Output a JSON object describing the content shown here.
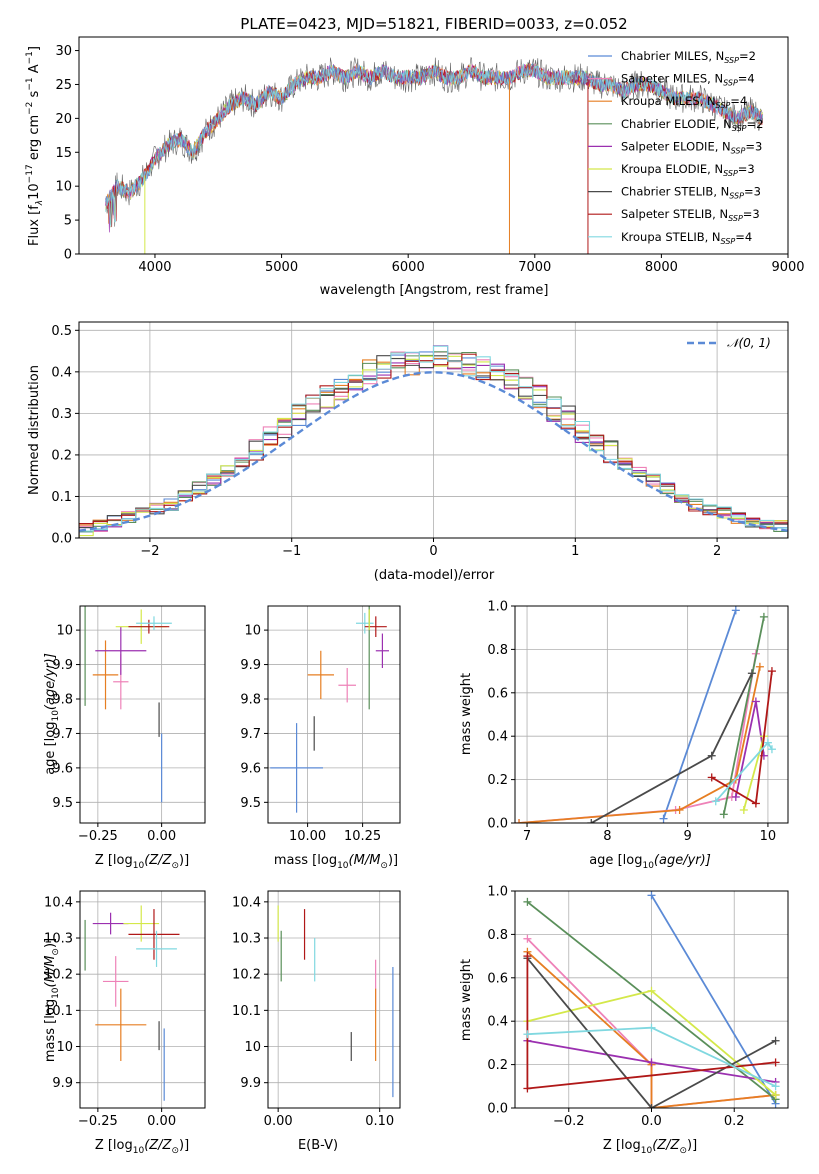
{
  "figure_title": "PLATE=0423, MJD=51821, FIBERID=0033, z=0.052",
  "colors": {
    "chabrier_miles": "#5b8ad6",
    "salpeter_miles": "#ee82b8",
    "kroupa_miles": "#e67e22",
    "chabrier_elodie": "#5a8f5a",
    "salpeter_elodie": "#9b30b0",
    "kroupa_elodie": "#d4e84a",
    "chabrier_stelib": "#4a4a4a",
    "salpeter_stelib": "#b01818",
    "kroupa_stelib": "#80d8e0",
    "normal_curve": "#5b8ad6",
    "grid": "#b0b0b0"
  },
  "chart_data": [
    {
      "id": "spectrum",
      "type": "line",
      "xlabel": "wavelength [Angstrom, rest frame]",
      "ylabel_parts": [
        "Flux [f",
        "λ",
        "10",
        "−17",
        " erg cm",
        "−2",
        " s",
        "−1",
        " A",
        "−1",
        "]"
      ],
      "xlim": [
        3400,
        9000
      ],
      "ylim": [
        0,
        32
      ],
      "xticks": [
        4000,
        5000,
        6000,
        7000,
        8000,
        9000
      ],
      "yticks": [
        0,
        5,
        10,
        15,
        20,
        25,
        30
      ],
      "grid": false,
      "legend_position": "right",
      "spectrum_envelope": {
        "x": [
          3600,
          3700,
          3800,
          3900,
          4000,
          4100,
          4200,
          4300,
          4400,
          4500,
          4600,
          4700,
          4800,
          4900,
          5000,
          5100,
          5200,
          5300,
          5400,
          5500,
          5600,
          5700,
          5800,
          5900,
          6000,
          6100,
          6200,
          6300,
          6400,
          6500,
          6600,
          6700,
          6800,
          6900,
          7000,
          7100,
          7200,
          7300,
          7400,
          7500,
          7600,
          7700,
          7800,
          7900,
          8000,
          8100,
          8200,
          8300,
          8400,
          8500,
          8600,
          8700,
          8800
        ],
        "y": [
          7,
          10,
          9,
          11,
          14,
          16,
          17,
          15,
          18,
          20,
          22,
          23,
          22,
          24,
          23,
          25,
          26,
          26,
          27,
          26,
          27,
          26,
          27,
          26,
          26,
          26,
          27,
          26,
          26,
          27,
          26,
          26,
          26,
          27,
          27,
          26,
          26,
          26,
          26,
          25,
          25,
          24,
          25,
          25,
          24,
          23,
          23,
          23,
          22,
          21,
          20,
          21,
          20
        ]
      },
      "series": [
        {
          "name": "Chabrier MILES, N",
          "sub": "SSP",
          "suffix": "=2",
          "color_key": "chabrier_miles"
        },
        {
          "name": "Salpeter MILES, N",
          "sub": "SSP",
          "suffix": "=4",
          "color_key": "salpeter_miles"
        },
        {
          "name": "Kroupa MILES, N",
          "sub": "SSP",
          "suffix": "=4",
          "color_key": "kroupa_miles"
        },
        {
          "name": "Chabrier ELODIE, N",
          "sub": "SSP",
          "suffix": "=2",
          "color_key": "chabrier_elodie"
        },
        {
          "name": "Salpeter ELODIE, N",
          "sub": "SSP",
          "suffix": "=3",
          "color_key": "salpeter_elodie"
        },
        {
          "name": "Kroupa ELODIE, N",
          "sub": "SSP",
          "suffix": "=3",
          "color_key": "kroupa_elodie"
        },
        {
          "name": "Chabrier STELIB, N",
          "sub": "SSP",
          "suffix": "=3",
          "color_key": "chabrier_stelib"
        },
        {
          "name": "Salpeter STELIB, N",
          "sub": "SSP",
          "suffix": "=3",
          "color_key": "salpeter_stelib"
        },
        {
          "name": "Kroupa STELIB, N",
          "sub": "SSP",
          "suffix": "=4",
          "color_key": "kroupa_stelib"
        }
      ]
    },
    {
      "id": "residuals",
      "type": "histogram",
      "xlabel": "(data-model)/error",
      "ylabel": "Normed distribution",
      "xlim": [
        -2.5,
        2.5
      ],
      "ylim": [
        0,
        0.52
      ],
      "xticks": [
        -2,
        -1,
        0,
        1,
        2
      ],
      "yticks": [
        0.0,
        0.1,
        0.2,
        0.3,
        0.4,
        0.5
      ],
      "grid": true,
      "legend_position": "top-right",
      "normal_curve_label": "𝒩(0, 1)",
      "bins_from": -2.5,
      "bin_width": 0.1,
      "typical_height": [
        0.02,
        0.03,
        0.04,
        0.05,
        0.06,
        0.07,
        0.08,
        0.1,
        0.12,
        0.14,
        0.16,
        0.18,
        0.21,
        0.24,
        0.27,
        0.3,
        0.32,
        0.34,
        0.36,
        0.38,
        0.4,
        0.41,
        0.42,
        0.42,
        0.43,
        0.44,
        0.42,
        0.42,
        0.41,
        0.4,
        0.38,
        0.36,
        0.34,
        0.31,
        0.29,
        0.26,
        0.24,
        0.21,
        0.18,
        0.16,
        0.14,
        0.12,
        0.1,
        0.08,
        0.07,
        0.06,
        0.05,
        0.04,
        0.03,
        0.03
      ]
    },
    {
      "id": "age_vs_metallicity",
      "type": "errorbar",
      "xlabel_parts": [
        "Z [log",
        "10",
        "(Z/Z",
        "⊙",
        ")]"
      ],
      "ylabel_parts": [
        "age  [log",
        "10",
        "(age/yr)]"
      ],
      "xlim": [
        -0.32,
        0.17
      ],
      "ylim": [
        9.44,
        10.07
      ],
      "xticks": [
        -0.25,
        0.0
      ],
      "yticks": [
        9.5,
        9.6,
        9.7,
        9.8,
        9.9,
        10.0
      ],
      "grid": true,
      "points": [
        {
          "x": -0.3,
          "xerr": 0.0,
          "y": 9.98,
          "yerr": 0.2,
          "color_key": "chabrier_elodie"
        },
        {
          "x": -0.22,
          "xerr": 0.05,
          "y": 9.87,
          "yerr": 0.1,
          "color_key": "kroupa_miles"
        },
        {
          "x": -0.16,
          "xerr": 0.03,
          "y": 9.85,
          "yerr": 0.08,
          "color_key": "salpeter_miles"
        },
        {
          "x": -0.16,
          "xerr": 0.1,
          "y": 9.94,
          "yerr": 0.07,
          "color_key": "salpeter_elodie"
        },
        {
          "x": -0.08,
          "xerr": 0.1,
          "y": 10.01,
          "yerr": 0.05,
          "color_key": "kroupa_elodie"
        },
        {
          "x": -0.05,
          "xerr": 0.08,
          "y": 10.01,
          "yerr": 0.02,
          "color_key": "salpeter_stelib"
        },
        {
          "x": -0.03,
          "xerr": 0.07,
          "y": 10.02,
          "yerr": 0.02,
          "color_key": "kroupa_stelib"
        },
        {
          "x": -0.01,
          "xerr": 0.0,
          "y": 9.74,
          "yerr": 0.05,
          "color_key": "chabrier_stelib"
        },
        {
          "x": 0.0,
          "xerr": 0.0,
          "y": 9.6,
          "yerr": 0.1,
          "color_key": "chabrier_miles"
        }
      ]
    },
    {
      "id": "age_vs_mass",
      "type": "errorbar",
      "xlabel_parts": [
        "mass [log",
        "10",
        "(M/M",
        "⊙",
        ")]"
      ],
      "xlim": [
        9.82,
        10.42
      ],
      "ylim": [
        9.44,
        10.07
      ],
      "xticks": [
        10.0,
        10.25
      ],
      "yticks": [
        9.5,
        9.6,
        9.7,
        9.8,
        9.9,
        10.0
      ],
      "grid": true,
      "points": [
        {
          "x": 9.95,
          "xerr": 0.12,
          "y": 9.6,
          "yerr": 0.13,
          "color_key": "chabrier_miles"
        },
        {
          "x": 10.06,
          "xerr": 0.06,
          "y": 9.87,
          "yerr": 0.07,
          "color_key": "kroupa_miles"
        },
        {
          "x": 10.18,
          "xerr": 0.04,
          "y": 9.84,
          "yerr": 0.05,
          "color_key": "salpeter_miles"
        },
        {
          "x": 10.28,
          "xerr": 0.0,
          "y": 9.92,
          "yerr": 0.15,
          "color_key": "chabrier_elodie"
        },
        {
          "x": 10.34,
          "xerr": 0.03,
          "y": 9.94,
          "yerr": 0.05,
          "color_key": "salpeter_elodie"
        },
        {
          "x": 10.26,
          "xerr": 0.04,
          "y": 10.02,
          "yerr": 0.03,
          "color_key": "kroupa_stelib"
        },
        {
          "x": 10.31,
          "xerr": 0.05,
          "y": 10.01,
          "yerr": 0.03,
          "color_key": "salpeter_stelib"
        },
        {
          "x": 10.28,
          "xerr": 0.0,
          "y": 10.03,
          "yerr": 0.03,
          "color_key": "kroupa_elodie"
        },
        {
          "x": 10.03,
          "xerr": 0.0,
          "y": 9.7,
          "yerr": 0.05,
          "color_key": "chabrier_stelib"
        }
      ]
    },
    {
      "id": "mass_weight_vs_age",
      "type": "line",
      "xlabel_parts": [
        "age  [log",
        "10",
        "(age/yr)]"
      ],
      "ylabel": "mass weight",
      "xlim": [
        6.85,
        10.25
      ],
      "ylim": [
        0,
        1.0
      ],
      "xticks": [
        7,
        8,
        9,
        10
      ],
      "yticks": [
        0.0,
        0.2,
        0.4,
        0.6,
        0.8,
        1.0
      ],
      "grid": true,
      "series": [
        {
          "color_key": "chabrier_miles",
          "x": [
            8.7,
            9.6
          ],
          "y": [
            0.02,
            0.98
          ]
        },
        {
          "color_key": "salpeter_miles",
          "x": [
            6.9,
            8.85,
            9.55,
            9.85
          ],
          "y": [
            0.0,
            0.06,
            0.12,
            0.78
          ]
        },
        {
          "color_key": "kroupa_miles",
          "x": [
            6.9,
            8.9,
            9.6,
            9.9
          ],
          "y": [
            0.0,
            0.06,
            0.2,
            0.72
          ]
        },
        {
          "color_key": "chabrier_elodie",
          "x": [
            9.45,
            9.95
          ],
          "y": [
            0.04,
            0.95
          ]
        },
        {
          "color_key": "salpeter_elodie",
          "x": [
            9.6,
            9.85,
            9.95
          ],
          "y": [
            0.12,
            0.56,
            0.31
          ]
        },
        {
          "color_key": "kroupa_elodie",
          "x": [
            9.7,
            9.95
          ],
          "y": [
            0.06,
            0.4
          ]
        },
        {
          "color_key": "chabrier_stelib",
          "x": [
            7.8,
            9.3,
            9.8
          ],
          "y": [
            0.0,
            0.31,
            0.69
          ]
        },
        {
          "color_key": "salpeter_stelib",
          "x": [
            9.3,
            9.85,
            10.05
          ],
          "y": [
            0.21,
            0.09,
            0.7
          ]
        },
        {
          "color_key": "kroupa_stelib",
          "x": [
            9.35,
            10.0,
            10.05
          ],
          "y": [
            0.1,
            0.37,
            0.34
          ]
        }
      ]
    },
    {
      "id": "mass_vs_metallicity",
      "type": "errorbar",
      "xlabel_parts": [
        "Z [log",
        "10",
        "(Z/Z",
        "⊙",
        ")]"
      ],
      "ylabel_parts": [
        "mass [log",
        "10",
        "(M/M",
        "⊙",
        ")]"
      ],
      "xlim": [
        -0.32,
        0.17
      ],
      "ylim": [
        9.83,
        10.43
      ],
      "xticks": [
        -0.25,
        0.0
      ],
      "yticks": [
        9.9,
        10.0,
        10.1,
        10.2,
        10.3,
        10.4
      ],
      "grid": true,
      "points": [
        {
          "x": -0.3,
          "xerr": 0.0,
          "y": 10.28,
          "yerr": 0.07,
          "color_key": "chabrier_elodie"
        },
        {
          "x": -0.2,
          "xerr": 0.07,
          "y": 10.34,
          "yerr": 0.03,
          "color_key": "salpeter_elodie"
        },
        {
          "x": -0.18,
          "xerr": 0.05,
          "y": 10.18,
          "yerr": 0.07,
          "color_key": "salpeter_miles"
        },
        {
          "x": -0.16,
          "xerr": 0.1,
          "y": 10.06,
          "yerr": 0.1,
          "color_key": "kroupa_miles"
        },
        {
          "x": -0.08,
          "xerr": 0.07,
          "y": 10.34,
          "yerr": 0.05,
          "color_key": "kroupa_elodie"
        },
        {
          "x": -0.03,
          "xerr": 0.1,
          "y": 10.31,
          "yerr": 0.07,
          "color_key": "salpeter_stelib"
        },
        {
          "x": -0.02,
          "xerr": 0.08,
          "y": 10.27,
          "yerr": 0.05,
          "color_key": "kroupa_stelib"
        },
        {
          "x": -0.01,
          "xerr": 0.0,
          "y": 10.03,
          "yerr": 0.04,
          "color_key": "chabrier_stelib"
        },
        {
          "x": 0.01,
          "xerr": 0.0,
          "y": 9.95,
          "yerr": 0.1,
          "color_key": "chabrier_miles"
        }
      ]
    },
    {
      "id": "mass_vs_extinction",
      "type": "errorbar",
      "xlabel": "E(B-V)",
      "xlim": [
        -0.01,
        0.12
      ],
      "ylim": [
        9.83,
        10.43
      ],
      "xticks": [
        0.0,
        0.1
      ],
      "yticks": [
        9.9,
        10.0,
        10.1,
        10.2,
        10.3,
        10.4
      ],
      "grid": true,
      "points": [
        {
          "x": 0.0,
          "xerr": 0.0,
          "y": 10.34,
          "yerr": 0.05,
          "color_key": "kroupa_elodie"
        },
        {
          "x": 0.003,
          "xerr": 0.0,
          "y": 10.25,
          "yerr": 0.07,
          "color_key": "chabrier_elodie"
        },
        {
          "x": 0.026,
          "xerr": 0.0,
          "y": 10.31,
          "yerr": 0.07,
          "color_key": "salpeter_stelib"
        },
        {
          "x": 0.036,
          "xerr": 0.0,
          "y": 10.24,
          "yerr": 0.06,
          "color_key": "kroupa_stelib"
        },
        {
          "x": 0.072,
          "xerr": 0.0,
          "y": 10.0,
          "yerr": 0.04,
          "color_key": "chabrier_stelib"
        },
        {
          "x": 0.096,
          "xerr": 0.0,
          "y": 10.17,
          "yerr": 0.07,
          "color_key": "salpeter_miles"
        },
        {
          "x": 0.096,
          "xerr": 0.0,
          "y": 10.06,
          "yerr": 0.1,
          "color_key": "kroupa_miles"
        },
        {
          "x": 0.113,
          "xerr": 0.0,
          "y": 10.04,
          "yerr": 0.18,
          "color_key": "chabrier_miles"
        }
      ]
    },
    {
      "id": "mass_weight_vs_metallicity",
      "type": "line",
      "xlabel_parts": [
        "Z [log",
        "10",
        "(Z/Z",
        "⊙",
        ")]"
      ],
      "ylabel": "mass weight",
      "xlim": [
        -0.33,
        0.33
      ],
      "ylim": [
        0,
        1.0
      ],
      "xticks": [
        -0.2,
        0.0,
        0.2
      ],
      "yticks": [
        0.0,
        0.2,
        0.4,
        0.6,
        0.8,
        1.0
      ],
      "grid": true,
      "series": [
        {
          "color_key": "chabrier_miles",
          "x": [
            0.0,
            0.3
          ],
          "y": [
            0.98,
            0.02
          ]
        },
        {
          "color_key": "salpeter_miles",
          "x": [
            -0.3,
            0.0,
            0.0,
            0.3
          ],
          "y": [
            0.78,
            0.2,
            0.0,
            0.06
          ]
        },
        {
          "color_key": "kroupa_miles",
          "x": [
            -0.3,
            0.0,
            0.0,
            0.3
          ],
          "y": [
            0.72,
            0.2,
            0.0,
            0.06
          ]
        },
        {
          "color_key": "chabrier_elodie",
          "x": [
            -0.3,
            0.3
          ],
          "y": [
            0.95,
            0.04
          ]
        },
        {
          "color_key": "salpeter_elodie",
          "x": [
            -0.3,
            0.0,
            0.3
          ],
          "y": [
            0.31,
            0.21,
            0.12
          ]
        },
        {
          "color_key": "kroupa_elodie",
          "x": [
            -0.3,
            0.0,
            0.3
          ],
          "y": [
            0.4,
            0.54,
            0.06
          ]
        },
        {
          "color_key": "chabrier_stelib",
          "x": [
            -0.3,
            0.0,
            0.3
          ],
          "y": [
            0.69,
            0.0,
            0.31
          ]
        },
        {
          "color_key": "salpeter_stelib",
          "x": [
            -0.3,
            -0.3,
            0.3
          ],
          "y": [
            0.7,
            0.09,
            0.21
          ]
        },
        {
          "color_key": "kroupa_stelib",
          "x": [
            -0.3,
            0.0,
            0.3
          ],
          "y": [
            0.34,
            0.37,
            0.1
          ]
        }
      ]
    }
  ]
}
